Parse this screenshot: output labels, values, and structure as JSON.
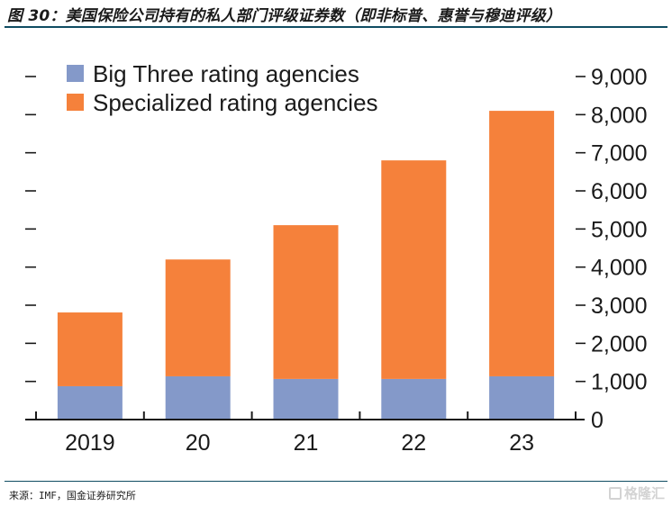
{
  "figure": {
    "title": "图 30：美国保险公司持有的私人部门评级证券数（即非标普、惠誉与穆迪评级）",
    "source": "来源：IMF，国金证券研究所",
    "watermark": "格隆汇"
  },
  "colors": {
    "big_three": "#8499c9",
    "specialized": "#f5813b",
    "rule": "#0f4c62",
    "axis": "#1a1a1a"
  },
  "chart_data": {
    "type": "bar",
    "stacked": true,
    "title": "",
    "xlabel": "",
    "ylabel": "",
    "categories": [
      "2019",
      "20",
      "21",
      "22",
      "23"
    ],
    "series": [
      {
        "name": "Big Three rating agencies",
        "values": [
          875,
          1135,
          1065,
          1065,
          1135
        ]
      },
      {
        "name": "Specialized rating agencies",
        "values": [
          1935,
          3065,
          4035,
          5735,
          6965
        ]
      }
    ],
    "totals": [
      2810,
      4200,
      5100,
      6800,
      8100
    ],
    "ylim": [
      0,
      9000
    ],
    "yticks": [
      0,
      1000,
      2000,
      3000,
      4000,
      5000,
      6000,
      7000,
      8000,
      9000
    ],
    "ytick_labels": [
      "0",
      "1,000",
      "2,000",
      "3,000",
      "4,000",
      "5,000",
      "6,000",
      "7,000",
      "8,000",
      "9,000"
    ],
    "y_axis_side": "right",
    "grid": false,
    "legend": {
      "placement": "top-left",
      "entries": [
        "Big Three rating agencies",
        "Specialized rating agencies"
      ]
    }
  }
}
